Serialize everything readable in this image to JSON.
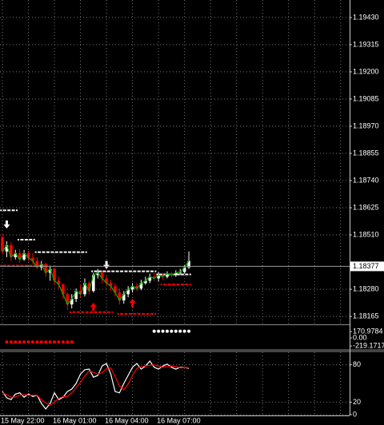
{
  "chart_data": [
    {
      "type": "candlestick",
      "categories": [
        "15 May 22:00",
        null,
        null,
        null,
        null,
        null,
        null,
        null,
        null,
        null,
        null,
        null,
        "16 May 01:00",
        null,
        null,
        null,
        null,
        null,
        null,
        null,
        null,
        null,
        null,
        null,
        "16 May 04:00",
        null,
        null,
        null,
        null,
        null,
        null,
        null,
        null,
        null,
        null,
        null,
        "16 May 07:00",
        null,
        null,
        null,
        null,
        null,
        null,
        null
      ],
      "open": [
        1.185,
        1.1844,
        1.18467,
        1.18416,
        1.18433,
        1.18406,
        1.18433,
        1.18413,
        1.184,
        1.18373,
        1.18386,
        1.1835,
        1.18366,
        1.18316,
        1.183,
        1.18259,
        1.18216,
        1.18239,
        1.18273,
        1.18259,
        1.18306,
        1.18273,
        1.1834,
        1.1835,
        1.18326,
        1.18306,
        1.18293,
        1.18266,
        1.18233,
        1.18259,
        1.18279,
        1.18293,
        1.18283,
        1.18306,
        1.18316,
        1.18333,
        1.18326,
        1.1834,
        1.18333,
        1.18346,
        1.1834,
        1.1835,
        1.18353,
        1.18373
      ],
      "high": [
        1.18517,
        1.18483,
        1.1848,
        1.18447,
        1.1845,
        1.18447,
        1.18443,
        1.18433,
        1.18416,
        1.184,
        1.18393,
        1.1838,
        1.18373,
        1.18333,
        1.18306,
        1.18266,
        1.18259,
        1.18283,
        1.183,
        1.18326,
        1.18316,
        1.1835,
        1.18366,
        1.1836,
        1.1834,
        1.1832,
        1.18306,
        1.18283,
        1.18273,
        1.18293,
        1.18306,
        1.18306,
        1.1832,
        1.18333,
        1.18346,
        1.1835,
        1.18353,
        1.18346,
        1.18356,
        1.18353,
        1.1836,
        1.18366,
        1.18383,
        1.1844
      ],
      "low": [
        1.18427,
        1.18416,
        1.184,
        1.18406,
        1.18393,
        1.184,
        1.184,
        1.18386,
        1.18366,
        1.1836,
        1.18333,
        1.18316,
        1.183,
        1.18283,
        1.18239,
        1.18193,
        1.18199,
        1.18226,
        1.18246,
        1.18249,
        1.18259,
        1.18266,
        1.18326,
        1.18306,
        1.18293,
        1.18273,
        1.18249,
        1.18216,
        1.18219,
        1.18246,
        1.18266,
        1.18273,
        1.18276,
        1.183,
        1.18306,
        1.18316,
        1.18313,
        1.1832,
        1.18326,
        1.1833,
        1.18333,
        1.1834,
        1.18346,
        1.18366
      ],
      "close": [
        1.1844,
        1.18467,
        1.18416,
        1.18433,
        1.18406,
        1.18433,
        1.18413,
        1.184,
        1.18373,
        1.18386,
        1.1835,
        1.18366,
        1.18316,
        1.183,
        1.18259,
        1.18216,
        1.18239,
        1.18273,
        1.18259,
        1.18306,
        1.18273,
        1.1834,
        1.1835,
        1.18326,
        1.18306,
        1.18293,
        1.18266,
        1.18233,
        1.18259,
        1.18279,
        1.18293,
        1.18283,
        1.18306,
        1.18316,
        1.18333,
        1.18326,
        1.1834,
        1.18333,
        1.18346,
        1.1834,
        1.1835,
        1.18353,
        1.18373,
        1.184
      ],
      "up_color": "#ffffff",
      "down_color": "#ff0000",
      "line_color": "#00b000",
      "ylim": [
        1.18135,
        1.19504
      ],
      "yticks": [
        {
          "value": 1.1943,
          "label": "1.19430"
        },
        {
          "value": 1.19315,
          "label": "1.19315"
        },
        {
          "value": 1.192,
          "label": "1.19200"
        },
        {
          "value": 1.19085,
          "label": "1.19085"
        },
        {
          "value": 1.1897,
          "label": "1.18970"
        },
        {
          "value": 1.18855,
          "label": "1.18855"
        },
        {
          "value": 1.1874,
          "label": "1.18740"
        },
        {
          "value": 1.18625,
          "label": "1.18625"
        },
        {
          "value": 1.1851,
          "label": "1.18510"
        },
        {
          "value": 1.1828,
          "label": "1.18280"
        },
        {
          "value": 1.18165,
          "label": "1.18165"
        }
      ],
      "grid": true,
      "current_price": 1.18377,
      "overlays": [
        {
          "color": "#ffffff",
          "values": [
            1.18614,
            1.18614,
            1.18614,
            1.18614,
            1.1849,
            1.1849,
            1.1849,
            1.1849,
            1.18437,
            1.18437,
            1.18437,
            1.18437,
            1.18437,
            1.18437,
            1.18437,
            1.18437,
            1.18437,
            1.18437,
            1.18437,
            1.18437,
            null,
            1.18356,
            1.18356,
            1.18356,
            1.18356,
            1.18356,
            1.18356,
            1.18356,
            1.18356,
            1.18356,
            1.18356,
            1.18356,
            1.18356,
            1.18356,
            1.18356,
            1.18356,
            1.18343,
            1.18343,
            1.18343,
            1.18343,
            1.18343,
            1.18343,
            1.18343,
            1.18343
          ]
        },
        {
          "color": "#ff0000",
          "values": [
            1.1838,
            1.1838,
            1.1838,
            1.1838,
            1.1838,
            1.1838,
            1.1838,
            1.1838,
            1.1838,
            1.1838,
            1.1838,
            null,
            null,
            null,
            null,
            null,
            1.18183,
            1.18183,
            1.18183,
            1.18183,
            1.18183,
            1.18183,
            1.18183,
            1.18183,
            1.18183,
            1.18183,
            null,
            1.18176,
            1.18176,
            1.18176,
            1.18176,
            1.18176,
            1.18176,
            1.18176,
            1.18176,
            1.18176,
            null,
            1.183,
            1.183,
            1.183,
            1.183,
            1.183,
            1.183,
            1.183
          ]
        }
      ],
      "signals": [
        {
          "color": "#ffffff",
          "direction": "down",
          "values": [
            null,
            1.18544,
            null,
            null,
            null,
            null,
            null,
            null,
            null,
            null,
            null,
            null,
            null,
            null,
            null,
            null,
            null,
            null,
            null,
            null,
            null,
            null,
            null,
            null,
            1.18373,
            null,
            null,
            null,
            null,
            null,
            null,
            null,
            null,
            null,
            null,
            null,
            null,
            null,
            null,
            null,
            null,
            null,
            null,
            null
          ]
        },
        {
          "color": "#ff0000",
          "direction": "up",
          "values": [
            null,
            null,
            null,
            null,
            null,
            null,
            null,
            null,
            null,
            null,
            null,
            null,
            null,
            null,
            null,
            null,
            null,
            null,
            null,
            null,
            null,
            1.18216,
            null,
            null,
            null,
            null,
            null,
            null,
            null,
            null,
            1.18233,
            null,
            null,
            null,
            null,
            null,
            null,
            null,
            null,
            null,
            null,
            null,
            null,
            null
          ]
        }
      ]
    },
    {
      "type": "dots",
      "ylim": [
        -302,
        324
      ],
      "yticks": [
        170.9784,
        {
          "value": 0,
          "label": "0.00"
        },
        -219.1717
      ],
      "series": [
        {
          "color": "#ffffff",
          "values": [
            null,
            null,
            null,
            null,
            null,
            null,
            null,
            null,
            null,
            null,
            null,
            null,
            null,
            null,
            null,
            null,
            null,
            null,
            null,
            null,
            null,
            null,
            null,
            null,
            null,
            null,
            null,
            null,
            null,
            null,
            null,
            null,
            null,
            null,
            null,
            180,
            180,
            180,
            180,
            180,
            180,
            180,
            180,
            180
          ]
        },
        {
          "color": "#ff0000",
          "values": [
            null,
            -110,
            -110,
            -110,
            -110,
            -110,
            -110,
            -110,
            -110,
            -110,
            -110,
            -110,
            -110,
            -110,
            -110,
            -110,
            -110,
            null,
            null,
            null,
            null,
            null,
            null,
            null,
            null,
            null,
            null,
            null,
            null,
            null,
            null,
            null,
            null,
            null,
            null,
            null,
            null,
            null,
            null,
            null,
            null,
            null,
            null,
            null
          ]
        }
      ]
    },
    {
      "type": "line",
      "ylim": [
        0,
        100
      ],
      "yticks": [
        0,
        20,
        80
      ],
      "grid": true,
      "series": [
        {
          "color": "#ffffff",
          "values": [
            37,
            27,
            24,
            33,
            35,
            28,
            33,
            29,
            31,
            18,
            9,
            18,
            35,
            24,
            28,
            37,
            41,
            50,
            65,
            72,
            73,
            60,
            63,
            78,
            82,
            65,
            37,
            35,
            50,
            63,
            76,
            82,
            73,
            78,
            86,
            76,
            73,
            78,
            81,
            76,
            73,
            76,
            76,
            74
          ]
        },
        {
          "color": "#ff0000",
          "values": [
            35,
            32,
            28,
            28,
            31,
            32,
            31,
            31,
            31,
            24,
            19,
            15,
            20,
            26,
            29,
            29,
            35,
            43,
            52,
            62,
            70,
            68,
            65,
            67,
            74,
            75,
            61,
            46,
            40,
            49,
            63,
            74,
            77,
            78,
            79,
            80,
            78,
            76,
            77,
            78,
            77,
            75,
            76,
            75
          ]
        }
      ]
    }
  ]
}
